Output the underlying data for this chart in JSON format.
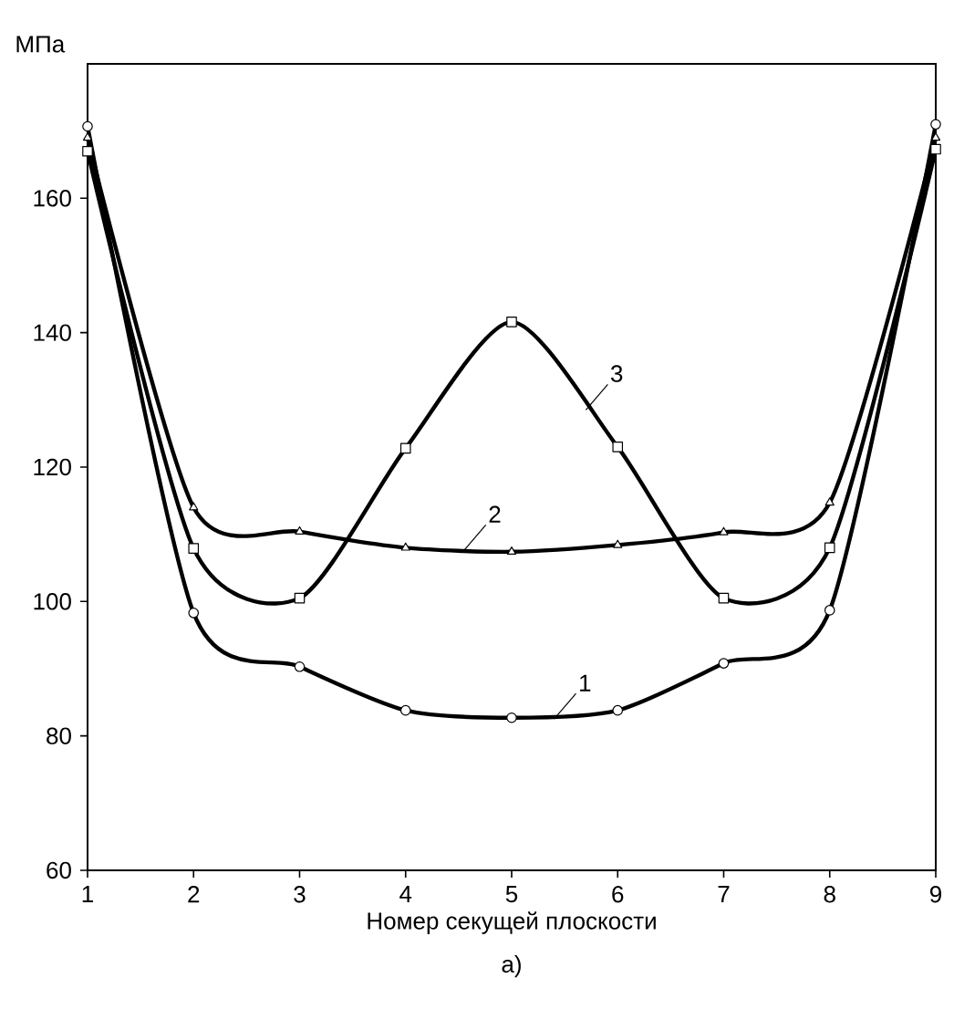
{
  "chart_data": {
    "type": "line",
    "ylabel": "МПа",
    "xlabel": "Номер секущей плоскости",
    "x": [
      1,
      2,
      3,
      4,
      5,
      6,
      7,
      8,
      9
    ],
    "series": [
      {
        "color": "#000000",
        "marker": "circle",
        "values": [
          170.7,
          98.3,
          90.3,
          83.8,
          82.7,
          83.8,
          90.8,
          98.7,
          171
        ]
      },
      {
        "color": "#000000",
        "marker": "triangle",
        "values": [
          169,
          114,
          110.4,
          108,
          107.4,
          108.4,
          110.3,
          114.7,
          169
        ]
      },
      {
        "color": "#000000",
        "marker": "square",
        "values": [
          167,
          107.9,
          100.5,
          122.8,
          141.6,
          123,
          100.5,
          108,
          167.3
        ]
      }
    ],
    "xlim": [
      1,
      9
    ],
    "ylim": [
      60,
      180
    ],
    "xticks": [
      1,
      2,
      3,
      4,
      5,
      6,
      7,
      8,
      9
    ],
    "yticks": [
      60,
      80,
      100,
      120,
      140,
      160
    ],
    "grid": false,
    "annotations": [
      {
        "text": "1",
        "x": 5.4,
        "y": 82.5
      },
      {
        "text": "2",
        "x": 4.55,
        "y": 107.6
      },
      {
        "text": "3",
        "x": 5.7,
        "y": 128.5
      },
      "а)"
    ]
  }
}
